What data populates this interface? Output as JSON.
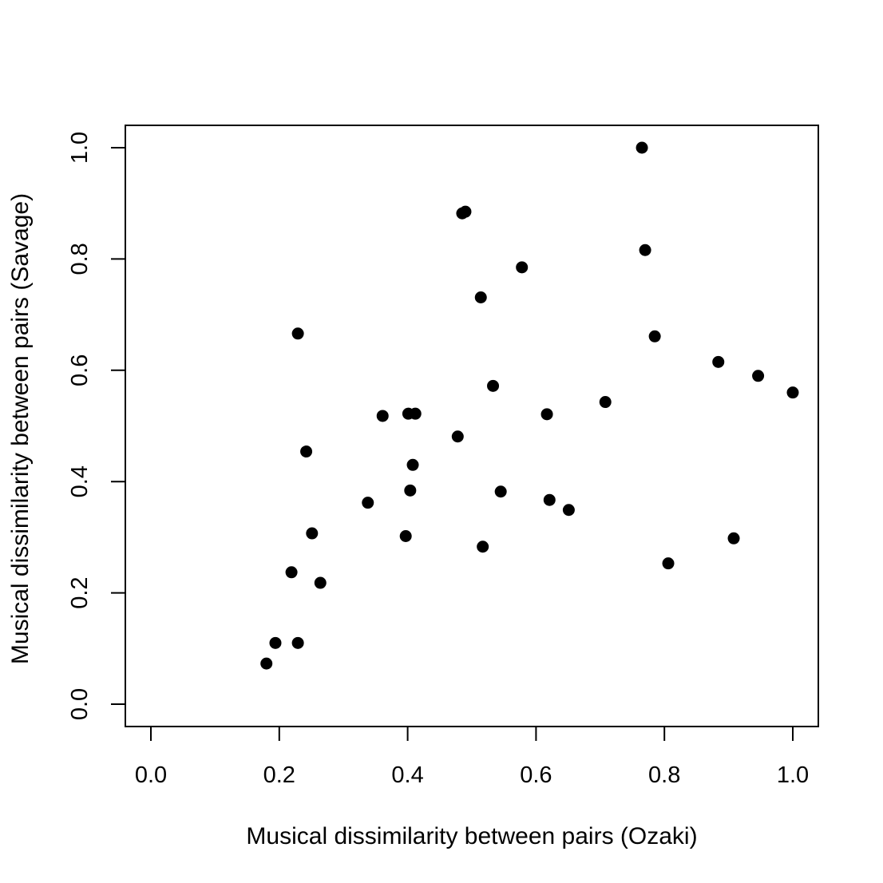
{
  "chart_data": {
    "type": "scatter",
    "title": "",
    "xlabel": "Musical dissimilarity between pairs (Ozaki)",
    "ylabel": "Musical dissimilarity between pairs (Savage)",
    "xlim": [
      0.0,
      1.0
    ],
    "ylim": [
      0.0,
      1.0
    ],
    "xticks": [
      "0.0",
      "0.2",
      "0.4",
      "0.6",
      "0.8",
      "1.0"
    ],
    "yticks": [
      "0.0",
      "0.2",
      "0.4",
      "0.6",
      "0.8",
      "1.0"
    ],
    "grid": false,
    "marker_color": "#000000",
    "points": [
      {
        "x": 0.18,
        "y": 0.073
      },
      {
        "x": 0.194,
        "y": 0.11
      },
      {
        "x": 0.229,
        "y": 0.11
      },
      {
        "x": 0.219,
        "y": 0.237
      },
      {
        "x": 0.264,
        "y": 0.218
      },
      {
        "x": 0.251,
        "y": 0.307
      },
      {
        "x": 0.242,
        "y": 0.454
      },
      {
        "x": 0.229,
        "y": 0.666
      },
      {
        "x": 0.338,
        "y": 0.362
      },
      {
        "x": 0.361,
        "y": 0.518
      },
      {
        "x": 0.397,
        "y": 0.302
      },
      {
        "x": 0.404,
        "y": 0.384
      },
      {
        "x": 0.408,
        "y": 0.43
      },
      {
        "x": 0.401,
        "y": 0.522
      },
      {
        "x": 0.412,
        "y": 0.522
      },
      {
        "x": 0.478,
        "y": 0.481
      },
      {
        "x": 0.485,
        "y": 0.882
      },
      {
        "x": 0.49,
        "y": 0.885
      },
      {
        "x": 0.514,
        "y": 0.731
      },
      {
        "x": 0.517,
        "y": 0.283
      },
      {
        "x": 0.533,
        "y": 0.572
      },
      {
        "x": 0.545,
        "y": 0.382
      },
      {
        "x": 0.578,
        "y": 0.785
      },
      {
        "x": 0.617,
        "y": 0.521
      },
      {
        "x": 0.621,
        "y": 0.367
      },
      {
        "x": 0.651,
        "y": 0.349
      },
      {
        "x": 0.708,
        "y": 0.543
      },
      {
        "x": 0.765,
        "y": 1.0
      },
      {
        "x": 0.77,
        "y": 0.816
      },
      {
        "x": 0.785,
        "y": 0.661
      },
      {
        "x": 0.806,
        "y": 0.253
      },
      {
        "x": 0.884,
        "y": 0.615
      },
      {
        "x": 0.908,
        "y": 0.298
      },
      {
        "x": 0.946,
        "y": 0.59
      },
      {
        "x": 1.0,
        "y": 0.56
      }
    ]
  }
}
